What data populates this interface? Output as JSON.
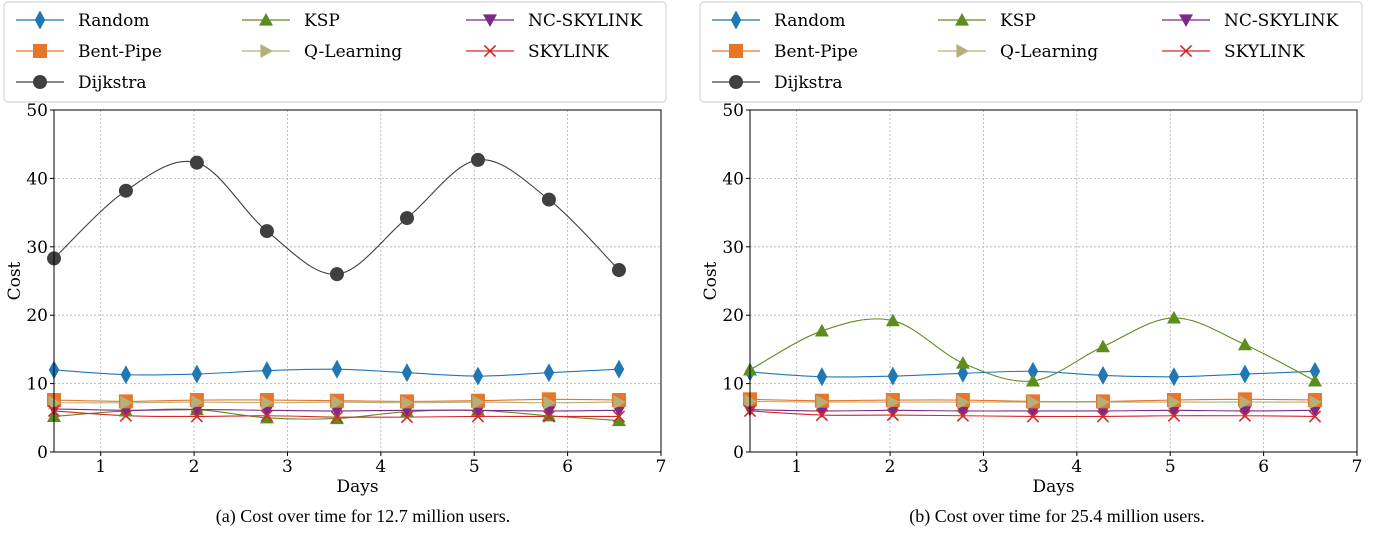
{
  "chart_data": [
    {
      "type": "line",
      "caption": "(a) Cost over time for 12.7 million users.",
      "xlabel": "Days",
      "ylabel": "Cost",
      "xlim": [
        0.5,
        7
      ],
      "ylim": [
        0,
        50
      ],
      "xticks": [
        1,
        2,
        3,
        4,
        5,
        6,
        7
      ],
      "yticks": [
        0,
        10,
        20,
        30,
        40,
        50
      ],
      "grid": true,
      "legend_position": "top",
      "series": [
        {
          "name": "Random",
          "color": "#1f77b4",
          "marker": "diamond",
          "x": [
            0.5,
            1.27,
            2.03,
            2.78,
            3.53,
            4.28,
            5.04,
            5.8,
            6.55
          ],
          "y": [
            12.0,
            11.3,
            11.4,
            11.9,
            12.1,
            11.6,
            11.1,
            11.6,
            12.1
          ]
        },
        {
          "name": "KSP",
          "color": "#5f8c1f",
          "marker": "triangle-up",
          "x": [
            0.5,
            1.27,
            2.03,
            2.78,
            3.53,
            4.28,
            5.04,
            5.8,
            6.55
          ],
          "y": [
            5.2,
            6.0,
            6.2,
            5.0,
            4.9,
            5.9,
            6.1,
            5.3,
            4.6
          ]
        },
        {
          "name": "NC-SKYLINK",
          "color": "#7b2a8c",
          "marker": "triangle-down",
          "x": [
            0.5,
            1.27,
            2.03,
            2.78,
            3.53,
            4.28,
            5.04,
            5.8,
            6.55
          ],
          "y": [
            6.3,
            6.1,
            6.2,
            6.1,
            6.0,
            6.1,
            6.1,
            6.0,
            6.1
          ]
        },
        {
          "name": "Bent-Pipe",
          "color": "#e8762a",
          "marker": "square",
          "x": [
            0.5,
            1.27,
            2.03,
            2.78,
            3.53,
            4.28,
            5.04,
            5.8,
            6.55
          ],
          "y": [
            7.6,
            7.4,
            7.6,
            7.6,
            7.5,
            7.4,
            7.5,
            7.7,
            7.6
          ]
        },
        {
          "name": "Q-Learning",
          "color": "#b5b07a",
          "marker": "triangle-right",
          "x": [
            0.5,
            1.27,
            2.03,
            2.78,
            3.53,
            4.28,
            5.04,
            5.8,
            6.55
          ],
          "y": [
            7.2,
            7.2,
            7.3,
            7.2,
            7.3,
            7.2,
            7.3,
            7.2,
            7.3
          ]
        },
        {
          "name": "SKYLINK",
          "color": "#d62728",
          "marker": "x",
          "x": [
            0.5,
            1.27,
            2.03,
            2.78,
            3.53,
            4.28,
            5.04,
            5.8,
            6.55
          ],
          "y": [
            6.0,
            5.3,
            5.2,
            5.3,
            5.1,
            5.1,
            5.2,
            5.2,
            5.2
          ]
        },
        {
          "name": "Dijkstra",
          "color": "#404040",
          "marker": "circle",
          "x": [
            0.5,
            1.27,
            2.03,
            2.78,
            3.53,
            4.28,
            5.04,
            5.8,
            6.55
          ],
          "y": [
            28.3,
            38.2,
            42.3,
            32.3,
            26.0,
            34.2,
            42.7,
            36.9,
            26.6
          ]
        }
      ]
    },
    {
      "type": "line",
      "caption": "(b) Cost over time for 25.4 million users.",
      "xlabel": "Days",
      "ylabel": "Cost",
      "xlim": [
        0.5,
        7
      ],
      "ylim": [
        0,
        50
      ],
      "xticks": [
        1,
        2,
        3,
        4,
        5,
        6,
        7
      ],
      "yticks": [
        0,
        10,
        20,
        30,
        40,
        50
      ],
      "grid": true,
      "legend_position": "top",
      "series": [
        {
          "name": "Random",
          "color": "#1f77b4",
          "marker": "diamond",
          "x": [
            0.5,
            1.27,
            2.03,
            2.78,
            3.53,
            4.28,
            5.04,
            5.8,
            6.55
          ],
          "y": [
            11.7,
            11.0,
            11.1,
            11.5,
            11.8,
            11.2,
            11.0,
            11.4,
            11.8
          ]
        },
        {
          "name": "KSP",
          "color": "#5f8c1f",
          "marker": "triangle-up",
          "x": [
            0.5,
            1.27,
            2.03,
            2.78,
            3.53,
            4.28,
            5.04,
            5.8,
            6.55
          ],
          "y": [
            12.0,
            17.7,
            19.2,
            13.0,
            10.4,
            15.4,
            19.6,
            15.7,
            10.4
          ]
        },
        {
          "name": "NC-SKYLINK",
          "color": "#7b2a8c",
          "marker": "triangle-down",
          "x": [
            0.5,
            1.27,
            2.03,
            2.78,
            3.53,
            4.28,
            5.04,
            5.8,
            6.55
          ],
          "y": [
            6.2,
            6.0,
            6.1,
            6.0,
            6.0,
            6.0,
            6.1,
            6.0,
            6.1
          ]
        },
        {
          "name": "Bent-Pipe",
          "color": "#e8762a",
          "marker": "square",
          "x": [
            0.5,
            1.27,
            2.03,
            2.78,
            3.53,
            4.28,
            5.04,
            5.8,
            6.55
          ],
          "y": [
            7.7,
            7.5,
            7.6,
            7.6,
            7.4,
            7.4,
            7.6,
            7.7,
            7.6
          ]
        },
        {
          "name": "Q-Learning",
          "color": "#b5b07a",
          "marker": "triangle-right",
          "x": [
            0.5,
            1.27,
            2.03,
            2.78,
            3.53,
            4.28,
            5.04,
            5.8,
            6.55
          ],
          "y": [
            7.4,
            7.3,
            7.3,
            7.3,
            7.3,
            7.3,
            7.3,
            7.3,
            7.3
          ]
        },
        {
          "name": "SKYLINK",
          "color": "#d62728",
          "marker": "x",
          "x": [
            0.5,
            1.27,
            2.03,
            2.78,
            3.53,
            4.28,
            5.04,
            5.8,
            6.55
          ],
          "y": [
            6.0,
            5.4,
            5.4,
            5.3,
            5.2,
            5.2,
            5.3,
            5.3,
            5.2
          ]
        },
        {
          "name": "Dijkstra",
          "color": "#404040",
          "marker": "circle",
          "x": [],
          "y": []
        }
      ]
    }
  ],
  "legend": {
    "columns": [
      [
        "Random",
        "Bent-Pipe",
        "Dijkstra"
      ],
      [
        "KSP",
        "Q-Learning"
      ],
      [
        "NC-SKYLINK",
        "SKYLINK"
      ]
    ]
  }
}
